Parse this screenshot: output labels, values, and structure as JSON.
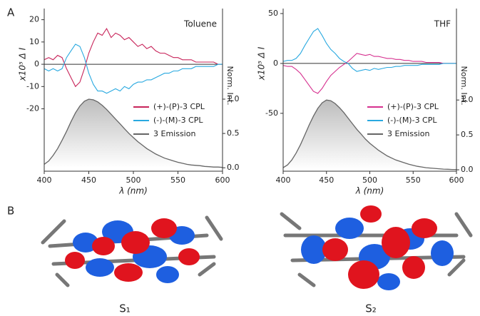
{
  "panel_labels": [
    "A",
    "B"
  ],
  "state_labels": [
    "S₁",
    "S₂"
  ],
  "chart_data": [
    {
      "type": "line",
      "title": "Toluene",
      "xlabel": "λ (nm)",
      "ylabel": "x10⁵ Δ I",
      "y2label": "Norm. Int.",
      "xlim": [
        400,
        600
      ],
      "xticks": [
        400,
        450,
        500,
        550,
        600
      ],
      "ylim": [
        -48,
        25
      ],
      "yticks": [
        -20,
        -10,
        0,
        10,
        20
      ],
      "y2lim": [
        -0.05,
        2.32
      ],
      "y2ticks": [
        {
          "value": 0,
          "label": "0.0"
        },
        {
          "value": 0.5,
          "label": "0.5"
        },
        {
          "value": 1,
          "label": "1.0"
        }
      ],
      "legend": "center right",
      "x": [
        400,
        405,
        410,
        415,
        420,
        425,
        430,
        435,
        440,
        445,
        450,
        455,
        460,
        465,
        470,
        475,
        480,
        485,
        490,
        495,
        500,
        505,
        510,
        515,
        520,
        525,
        530,
        535,
        540,
        545,
        550,
        555,
        560,
        565,
        570,
        575,
        580,
        585,
        590,
        595,
        600
      ],
      "series": [
        {
          "name": "(+)-(P)-3 CPL",
          "color": "#c8245a",
          "values": [
            2,
            3,
            2,
            4,
            3,
            -2,
            -6,
            -10,
            -8,
            -2,
            5,
            10,
            14,
            13,
            16,
            12,
            14,
            13,
            11,
            12,
            10,
            8,
            9,
            7,
            8,
            6,
            5,
            5,
            4,
            3,
            3,
            2,
            2,
            2,
            1,
            1,
            1,
            1,
            1,
            0,
            0
          ]
        },
        {
          "name": "(-)-(M)-3 CPL",
          "color": "#29a9e0",
          "values": [
            -2,
            -3,
            -2,
            -3,
            -2,
            3,
            6,
            9,
            8,
            3,
            -4,
            -9,
            -12,
            -12,
            -13,
            -12,
            -11,
            -12,
            -10,
            -11,
            -9,
            -8,
            -8,
            -7,
            -7,
            -6,
            -5,
            -4,
            -4,
            -3,
            -3,
            -2,
            -2,
            -2,
            -1,
            -1,
            -1,
            -1,
            -1,
            0,
            0
          ]
        },
        {
          "name": "3 Emission",
          "color": "#666666",
          "axis": "y2",
          "values": [
            0.05,
            0.1,
            0.18,
            0.28,
            0.4,
            0.53,
            0.67,
            0.8,
            0.9,
            0.97,
            1.0,
            0.99,
            0.96,
            0.91,
            0.85,
            0.78,
            0.71,
            0.64,
            0.57,
            0.5,
            0.44,
            0.38,
            0.33,
            0.28,
            0.24,
            0.2,
            0.17,
            0.14,
            0.12,
            0.1,
            0.08,
            0.065,
            0.05,
            0.04,
            0.035,
            0.03,
            0.02,
            0.015,
            0.01,
            0.01,
            0.005
          ]
        }
      ]
    },
    {
      "type": "line",
      "title": "THF",
      "xlabel": "λ (nm)",
      "ylabel": "x10⁵ Δ I",
      "y2label": "Norm. Int.",
      "xlim": [
        400,
        600
      ],
      "xticks": [
        400,
        450,
        500,
        550,
        600
      ],
      "ylim": [
        -108,
        55
      ],
      "yticks": [
        -50,
        0,
        50
      ],
      "y2lim": [
        -0.02,
        2.31
      ],
      "y2ticks": [
        {
          "value": 0,
          "label": "0.0"
        },
        {
          "value": 0.5,
          "label": "0.5"
        },
        {
          "value": 1,
          "label": "1.0"
        }
      ],
      "legend": "center right",
      "x": [
        400,
        405,
        410,
        415,
        420,
        425,
        430,
        435,
        440,
        445,
        450,
        455,
        460,
        465,
        470,
        475,
        480,
        485,
        490,
        495,
        500,
        505,
        510,
        515,
        520,
        525,
        530,
        535,
        540,
        545,
        550,
        555,
        560,
        565,
        570,
        575,
        580,
        585,
        590,
        595,
        600
      ],
      "series": [
        {
          "name": "(+)-(P)-3 CPL",
          "color": "#d6308f",
          "values": [
            -2,
            -3,
            -3,
            -6,
            -10,
            -16,
            -22,
            -28,
            -30,
            -25,
            -18,
            -12,
            -8,
            -4,
            -1,
            2,
            6,
            10,
            9,
            8,
            9,
            7,
            7,
            6,
            5,
            5,
            4,
            4,
            3,
            3,
            2,
            2,
            2,
            1,
            1,
            1,
            1,
            0,
            0,
            0,
            0
          ]
        },
        {
          "name": "(-)-(M)-3 CPL",
          "color": "#29a9e0",
          "values": [
            2,
            3,
            3,
            5,
            10,
            18,
            25,
            32,
            35,
            28,
            20,
            14,
            10,
            5,
            2,
            0,
            -5,
            -8,
            -7,
            -6,
            -7,
            -5,
            -6,
            -5,
            -4,
            -4,
            -3,
            -3,
            -2,
            -2,
            -2,
            -2,
            -1,
            -1,
            -1,
            -1,
            -1,
            0,
            0,
            0,
            0
          ]
        },
        {
          "name": "3 Emission",
          "color": "#666666",
          "axis": "y2",
          "values": [
            0.03,
            0.07,
            0.14,
            0.24,
            0.36,
            0.5,
            0.64,
            0.77,
            0.88,
            0.96,
            1.0,
            0.99,
            0.95,
            0.89,
            0.82,
            0.74,
            0.66,
            0.58,
            0.51,
            0.44,
            0.38,
            0.33,
            0.28,
            0.24,
            0.2,
            0.17,
            0.14,
            0.12,
            0.1,
            0.08,
            0.065,
            0.05,
            0.04,
            0.03,
            0.025,
            0.02,
            0.015,
            0.01,
            0.008,
            0.005,
            0.003
          ]
        }
      ]
    }
  ]
}
